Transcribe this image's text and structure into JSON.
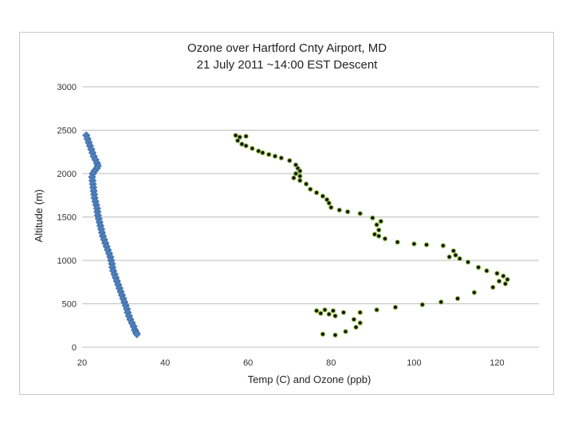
{
  "chart_data": {
    "type": "scatter",
    "title": "Ozone over Hartford Cnty Airport, MD",
    "subtitle": "21 July 2011  ~14:00 EST Descent",
    "xlabel": "Temp (C) and Ozone (ppb)",
    "ylabel": "Altitude (m)",
    "xlim": [
      20,
      125
    ],
    "ylim": [
      0,
      3000
    ],
    "x_ticks": [
      20,
      40,
      60,
      80,
      100,
      120
    ],
    "y_ticks": [
      0,
      500,
      1000,
      1500,
      2000,
      2500,
      3000
    ],
    "grid": "horizontal",
    "series": [
      {
        "name": "Temp (C)",
        "color": "#4f81bd",
        "marker": "diamond",
        "points": [
          [
            21.0,
            2440
          ],
          [
            21.3,
            2400
          ],
          [
            21.6,
            2360
          ],
          [
            21.9,
            2320
          ],
          [
            22.2,
            2280
          ],
          [
            22.5,
            2240
          ],
          [
            22.8,
            2200
          ],
          [
            23.2,
            2160
          ],
          [
            23.6,
            2120
          ],
          [
            23.8,
            2090
          ],
          [
            23.5,
            2060
          ],
          [
            23.0,
            2030
          ],
          [
            22.6,
            2000
          ],
          [
            22.4,
            1960
          ],
          [
            22.5,
            1920
          ],
          [
            22.6,
            1880
          ],
          [
            22.7,
            1840
          ],
          [
            22.8,
            1800
          ],
          [
            22.9,
            1760
          ],
          [
            23.0,
            1720
          ],
          [
            23.2,
            1680
          ],
          [
            23.4,
            1640
          ],
          [
            23.6,
            1600
          ],
          [
            23.7,
            1560
          ],
          [
            23.8,
            1520
          ],
          [
            24.0,
            1480
          ],
          [
            24.2,
            1440
          ],
          [
            24.4,
            1400
          ],
          [
            24.6,
            1360
          ],
          [
            24.8,
            1320
          ],
          [
            25.0,
            1280
          ],
          [
            25.3,
            1240
          ],
          [
            25.6,
            1200
          ],
          [
            25.9,
            1160
          ],
          [
            26.2,
            1120
          ],
          [
            26.5,
            1080
          ],
          [
            26.8,
            1040
          ],
          [
            27.0,
            1000
          ],
          [
            27.2,
            960
          ],
          [
            27.3,
            920
          ],
          [
            27.5,
            880
          ],
          [
            27.8,
            840
          ],
          [
            28.1,
            800
          ],
          [
            28.4,
            760
          ],
          [
            28.7,
            720
          ],
          [
            29.0,
            680
          ],
          [
            29.3,
            640
          ],
          [
            29.6,
            600
          ],
          [
            29.9,
            560
          ],
          [
            30.2,
            520
          ],
          [
            30.5,
            480
          ],
          [
            30.8,
            440
          ],
          [
            31.0,
            400
          ],
          [
            31.3,
            360
          ],
          [
            31.6,
            320
          ],
          [
            32.0,
            280
          ],
          [
            32.4,
            240
          ],
          [
            32.7,
            200
          ],
          [
            33.0,
            170
          ],
          [
            33.2,
            150
          ]
        ]
      },
      {
        "name": "Ozone (ppb)",
        "color": "#111111",
        "marker": "dot",
        "points": [
          [
            57.0,
            2440
          ],
          [
            58.0,
            2420
          ],
          [
            59.5,
            2430
          ],
          [
            57.5,
            2380
          ],
          [
            58.5,
            2340
          ],
          [
            59.5,
            2320
          ],
          [
            61.0,
            2290
          ],
          [
            62.5,
            2260
          ],
          [
            63.5,
            2240
          ],
          [
            65.0,
            2220
          ],
          [
            66.5,
            2200
          ],
          [
            68.0,
            2180
          ],
          [
            70.0,
            2150
          ],
          [
            71.5,
            2100
          ],
          [
            72.0,
            2060
          ],
          [
            72.5,
            2030
          ],
          [
            71.5,
            2000
          ],
          [
            72.5,
            1970
          ],
          [
            71.0,
            1950
          ],
          [
            72.5,
            1920
          ],
          [
            74.0,
            1880
          ],
          [
            75.0,
            1820
          ],
          [
            76.5,
            1780
          ],
          [
            78.0,
            1740
          ],
          [
            79.0,
            1700
          ],
          [
            79.5,
            1660
          ],
          [
            80.0,
            1610
          ],
          [
            82.0,
            1580
          ],
          [
            84.0,
            1560
          ],
          [
            87.0,
            1540
          ],
          [
            90.0,
            1490
          ],
          [
            92.0,
            1450
          ],
          [
            91.0,
            1410
          ],
          [
            91.5,
            1350
          ],
          [
            90.5,
            1300
          ],
          [
            91.5,
            1280
          ],
          [
            93.0,
            1250
          ],
          [
            96.0,
            1210
          ],
          [
            100.0,
            1190
          ],
          [
            103.0,
            1180
          ],
          [
            107.0,
            1170
          ],
          [
            109.5,
            1110
          ],
          [
            110.0,
            1060
          ],
          [
            108.5,
            1040
          ],
          [
            111.0,
            1020
          ],
          [
            113.0,
            980
          ],
          [
            115.5,
            920
          ],
          [
            117.5,
            880
          ],
          [
            120.0,
            850
          ],
          [
            121.5,
            820
          ],
          [
            122.5,
            780
          ],
          [
            120.5,
            760
          ],
          [
            122.0,
            730
          ],
          [
            119.0,
            690
          ],
          [
            114.5,
            630
          ],
          [
            110.5,
            560
          ],
          [
            106.5,
            520
          ],
          [
            102.0,
            490
          ],
          [
            95.5,
            460
          ],
          [
            91.0,
            430
          ],
          [
            87.0,
            400
          ],
          [
            83.0,
            400
          ],
          [
            80.5,
            420
          ],
          [
            78.5,
            430
          ],
          [
            76.5,
            420
          ],
          [
            77.5,
            390
          ],
          [
            79.5,
            380
          ],
          [
            81.0,
            360
          ],
          [
            85.5,
            320
          ],
          [
            87.0,
            280
          ],
          [
            86.0,
            230
          ],
          [
            83.5,
            180
          ],
          [
            81.0,
            140
          ],
          [
            78.0,
            150
          ]
        ]
      }
    ]
  }
}
